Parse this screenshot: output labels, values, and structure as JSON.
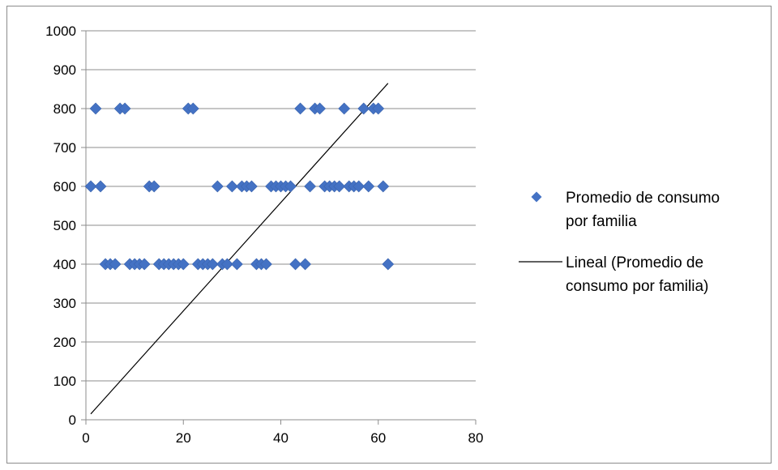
{
  "chart_data": {
    "type": "scatter",
    "title": "",
    "xlabel": "",
    "ylabel": "",
    "xlim": [
      0,
      80
    ],
    "ylim": [
      0,
      1000
    ],
    "x_ticks": [
      "0",
      "20",
      "40",
      "60",
      "80"
    ],
    "y_ticks": [
      "0",
      "100",
      "200",
      "300",
      "400",
      "500",
      "600",
      "700",
      "800",
      "900",
      "1000"
    ],
    "grid": "horizontal",
    "legend_position": "right",
    "series": [
      {
        "name": "Promedio de consumo por familia",
        "legend_lines": [
          "Promedio de consumo",
          "por familia"
        ],
        "marker": "diamond",
        "color": "#4472C4",
        "points": [
          [
            2,
            800
          ],
          [
            7,
            800
          ],
          [
            8,
            800
          ],
          [
            21,
            800
          ],
          [
            22,
            800
          ],
          [
            44,
            800
          ],
          [
            47,
            800
          ],
          [
            48,
            800
          ],
          [
            53,
            800
          ],
          [
            57,
            800
          ],
          [
            59,
            800
          ],
          [
            60,
            800
          ],
          [
            1,
            600
          ],
          [
            3,
            600
          ],
          [
            13,
            600
          ],
          [
            14,
            600
          ],
          [
            27,
            600
          ],
          [
            30,
            600
          ],
          [
            32,
            600
          ],
          [
            33,
            600
          ],
          [
            34,
            600
          ],
          [
            38,
            600
          ],
          [
            39,
            600
          ],
          [
            40,
            600
          ],
          [
            41,
            600
          ],
          [
            42,
            600
          ],
          [
            46,
            600
          ],
          [
            49,
            600
          ],
          [
            50,
            600
          ],
          [
            51,
            600
          ],
          [
            52,
            600
          ],
          [
            54,
            600
          ],
          [
            55,
            600
          ],
          [
            56,
            600
          ],
          [
            58,
            600
          ],
          [
            61,
            600
          ],
          [
            4,
            400
          ],
          [
            5,
            400
          ],
          [
            6,
            400
          ],
          [
            9,
            400
          ],
          [
            10,
            400
          ],
          [
            11,
            400
          ],
          [
            12,
            400
          ],
          [
            15,
            400
          ],
          [
            16,
            400
          ],
          [
            17,
            400
          ],
          [
            18,
            400
          ],
          [
            19,
            400
          ],
          [
            20,
            400
          ],
          [
            23,
            400
          ],
          [
            24,
            400
          ],
          [
            25,
            400
          ],
          [
            26,
            400
          ],
          [
            28,
            400
          ],
          [
            29,
            400
          ],
          [
            31,
            400
          ],
          [
            35,
            400
          ],
          [
            36,
            400
          ],
          [
            37,
            400
          ],
          [
            43,
            400
          ],
          [
            45,
            400
          ],
          [
            62,
            400
          ]
        ]
      },
      {
        "name": "Lineal (Promedio de consumo por familia)",
        "legend_lines": [
          "Lineal (Promedio de",
          "consumo por familia)"
        ],
        "type": "line",
        "color": "#000000",
        "points": [
          [
            1,
            15
          ],
          [
            62,
            865
          ]
        ]
      }
    ]
  }
}
